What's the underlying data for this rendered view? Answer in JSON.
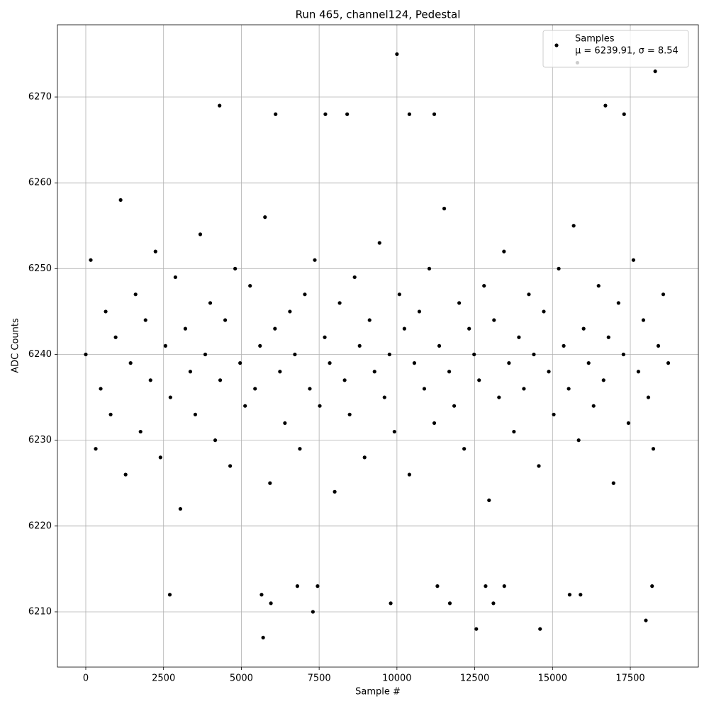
{
  "chart_data": {
    "type": "scatter",
    "title": "Run 465, channel124, Pedestal",
    "xlabel": "Sample #",
    "ylabel": "ADC Counts",
    "xlim": [
      -911,
      19687
    ],
    "ylim": [
      6203.56,
      6278.42
    ],
    "xticks": [
      0,
      2500,
      5000,
      7500,
      10000,
      12500,
      15000,
      17500
    ],
    "yticks": [
      6210,
      6220,
      6230,
      6240,
      6250,
      6260,
      6270
    ],
    "grid": true,
    "legend": "upper right",
    "series": [
      {
        "name": "Samples",
        "label2": "μ = 6239.91, σ = 8.54",
        "color": "#000000",
        "x": [
          0,
          160,
          320,
          480,
          640,
          800,
          960,
          1120,
          1280,
          1440,
          1600,
          1760,
          1920,
          2080,
          2240,
          2400,
          2560,
          2720,
          2880,
          3040,
          3200,
          3360,
          3520,
          3680,
          3840,
          4000,
          4160,
          4320,
          4480,
          4640,
          4800,
          4960,
          5120,
          5280,
          5440,
          5600,
          5760,
          5920,
          6080,
          6240,
          6400,
          6560,
          6720,
          6880,
          7040,
          7200,
          7360,
          7520,
          7680,
          7840,
          8000,
          8160,
          8320,
          8480,
          8640,
          8800,
          8960,
          9120,
          9280,
          9440,
          9600,
          9760,
          9920,
          10080,
          10240,
          10400,
          10560,
          10720,
          10880,
          11040,
          11200,
          11360,
          11520,
          11680,
          11840,
          12000,
          12160,
          12320,
          12480,
          12640,
          12800,
          12960,
          13120,
          13280,
          13440,
          13600,
          13760,
          13920,
          14080,
          14240,
          14400,
          14560,
          14720,
          14880,
          15040,
          15200,
          15360,
          15520,
          15680,
          15840,
          16000,
          16160,
          16320,
          16480,
          16640,
          16800,
          16960,
          17120,
          17280,
          17440,
          17600,
          17760,
          17920,
          18080,
          18240,
          18400,
          18560,
          18720,
          10000,
          15800,
          18300,
          4300,
          16700,
          6100,
          7700,
          8400,
          10400,
          11200,
          17300,
          5700,
          12550,
          14600,
          18000,
          7300,
          9800,
          5950,
          11700,
          13100,
          2700,
          5650,
          15550,
          15900,
          6800,
          7450,
          11300,
          12850,
          13450,
          18200
        ],
        "values": [
          6240,
          6251,
          6229,
          6236,
          6245,
          6233,
          6242,
          6258,
          6226,
          6239,
          6247,
          6231,
          6244,
          6237,
          6252,
          6228,
          6241,
          6235,
          6249,
          6222,
          6243,
          6238,
          6233,
          6254,
          6240,
          6246,
          6230,
          6237,
          6244,
          6227,
          6250,
          6239,
          6234,
          6248,
          6236,
          6241,
          6256,
          6225,
          6243,
          6238,
          6232,
          6245,
          6240,
          6229,
          6247,
          6236,
          6251,
          6234,
          6242,
          6239,
          6224,
          6246,
          6237,
          6233,
          6249,
          6241,
          6228,
          6244,
          6238,
          6253,
          6235,
          6240,
          6231,
          6247,
          6243,
          6226,
          6239,
          6245,
          6236,
          6250,
          6232,
          6241,
          6257,
          6238,
          6234,
          6246,
          6229,
          6243,
          6240,
          6237,
          6248,
          6223,
          6244,
          6235,
          6252,
          6239,
          6231,
          6242,
          6236,
          6247,
          6240,
          6227,
          6245,
          6238,
          6233,
          6250,
          6241,
          6236,
          6255,
          6230,
          6243,
          6239,
          6234,
          6248,
          6237,
          6242,
          6225,
          6246,
          6240,
          6232,
          6251,
          6238,
          6244,
          6235,
          6229,
          6241,
          6247,
          6239,
          6275,
          6274,
          6273,
          6269,
          6269,
          6268,
          6268,
          6268,
          6268,
          6268,
          6268,
          6207,
          6208,
          6208,
          6209,
          6210,
          6211,
          6211,
          6211,
          6211,
          6212,
          6212,
          6212,
          6212,
          6213,
          6213,
          6213,
          6213,
          6213,
          6213
        ]
      }
    ]
  }
}
